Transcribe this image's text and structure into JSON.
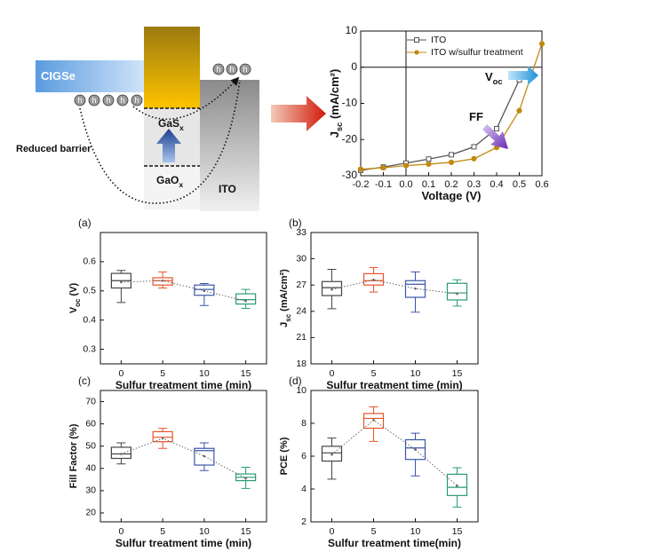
{
  "diagram": {
    "left": [
      "CIGSe"
    ],
    "top": [
      "GaS",
      "x"
    ],
    "barrier": [
      "Reduced barrier"
    ],
    "bottom": [
      "GaO",
      "x"
    ],
    "right": [
      "ITO"
    ],
    "hole": "h"
  },
  "chart_data": [
    {
      "type": "line",
      "xlabel": [
        "Voltage (V)"
      ],
      "ylabel": [
        "J",
        "sc",
        " (mA/cm²)"
      ],
      "x": [
        -0.2,
        -0.1,
        0,
        0.1,
        0.2,
        0.3,
        0.4,
        0.5,
        0.6
      ],
      "series": [
        {
          "name": "ITO",
          "color": "#555555",
          "marker": "square",
          "values": [
            -28.5,
            -27.6,
            -26.5,
            -25.4,
            -24.2,
            -22,
            -17,
            -3.5,
            null
          ]
        },
        {
          "name": "ITO w/sulfur treatment",
          "color": "#c08a10",
          "marker": "circle",
          "values": [
            -28.2,
            -27.8,
            -27.2,
            -26.8,
            -26.3,
            -25.3,
            -22.2,
            -12,
            6.5
          ]
        }
      ],
      "xlim": [
        -0.2,
        0.6
      ],
      "xticks": [
        -0.2,
        -0.1,
        {
          "value": 0,
          "label": "0.0"
        },
        0.1,
        0.2,
        0.3,
        0.4,
        0.5,
        0.6
      ],
      "ylim": [
        -30,
        10
      ],
      "yticks": [
        -30,
        -20,
        -10,
        0,
        10
      ],
      "annotations": [
        [
          "V",
          "oc"
        ],
        [
          "FF"
        ]
      ],
      "legend": "top-right"
    },
    {
      "type": "box",
      "panel": "(a)",
      "xlabel": [
        "Sulfur treatment time (min)"
      ],
      "ylabel": [
        "V",
        "oc",
        " (V)"
      ],
      "categories": [
        "0",
        "5",
        "10",
        "15"
      ],
      "ylim": [
        0.25,
        0.7
      ],
      "yticks": [
        0.3,
        0.4,
        0.5,
        0.6
      ],
      "boxes": [
        {
          "min": 0.46,
          "q1": 0.51,
          "median": 0.535,
          "q3": 0.56,
          "max": 0.57,
          "mean": 0.53,
          "color": "#444444"
        },
        {
          "min": 0.51,
          "q1": 0.52,
          "median": 0.535,
          "q3": 0.545,
          "max": 0.565,
          "mean": 0.535,
          "color": "#e8542a"
        },
        {
          "min": 0.45,
          "q1": 0.485,
          "median": 0.505,
          "q3": 0.52,
          "max": 0.525,
          "mean": 0.5,
          "color": "#3a55a8"
        },
        {
          "min": 0.44,
          "q1": 0.455,
          "median": 0.47,
          "q3": 0.49,
          "max": 0.505,
          "mean": 0.465,
          "color": "#2a9a78"
        }
      ]
    },
    {
      "type": "box",
      "panel": "(b)",
      "xlabel": [
        "Sulfur treatment time (min)"
      ],
      "ylabel": [
        "J",
        "sc",
        " (mA/cm²)"
      ],
      "categories": [
        "0",
        "5",
        "10",
        "15"
      ],
      "ylim": [
        18,
        33
      ],
      "yticks": [
        18,
        21,
        24,
        27,
        30,
        33
      ],
      "boxes": [
        {
          "min": 24.3,
          "q1": 25.8,
          "median": 26.7,
          "q3": 27.4,
          "max": 28.8,
          "mean": 26.5,
          "color": "#444444"
        },
        {
          "min": 26.2,
          "q1": 27,
          "median": 27.5,
          "q3": 28.3,
          "max": 29,
          "mean": 27.6,
          "color": "#e8542a"
        },
        {
          "min": 23.9,
          "q1": 25.6,
          "median": 27.1,
          "q3": 27.5,
          "max": 28.5,
          "mean": 26.6,
          "color": "#3a55a8"
        },
        {
          "min": 24.6,
          "q1": 25.3,
          "median": 26.1,
          "q3": 27.2,
          "max": 27.6,
          "mean": 26,
          "color": "#2a9a78"
        }
      ]
    },
    {
      "type": "box",
      "panel": "(c)",
      "xlabel": [
        "Sulfur treatment time (min)"
      ],
      "ylabel": [
        "Fill Factor (%)"
      ],
      "categories": [
        "0",
        "5",
        "10",
        "15"
      ],
      "ylim": [
        16,
        75
      ],
      "yticks": [
        20,
        30,
        40,
        50,
        60,
        70
      ],
      "boxes": [
        {
          "min": 42,
          "q1": 44.5,
          "median": 46.5,
          "q3": 49.5,
          "max": 51.5,
          "mean": 46.5,
          "color": "#444444"
        },
        {
          "min": 49,
          "q1": 52,
          "median": 54,
          "q3": 56.5,
          "max": 58,
          "mean": 53.5,
          "color": "#e8542a"
        },
        {
          "min": 39,
          "q1": 41.5,
          "median": 48,
          "q3": 49,
          "max": 51.5,
          "mean": 45.5,
          "color": "#3a55a8"
        },
        {
          "min": 31,
          "q1": 34.5,
          "median": 36,
          "q3": 37.5,
          "max": 40.5,
          "mean": 35.5,
          "color": "#2a9a78"
        }
      ]
    },
    {
      "type": "box",
      "panel": "(d)",
      "xlabel": [
        "Sulfur treatment time(min)"
      ],
      "ylabel": [
        "PCE (%)"
      ],
      "categories": [
        "0",
        "5",
        "10",
        "15"
      ],
      "ylim": [
        2,
        10
      ],
      "yticks": [
        2,
        4,
        6,
        8,
        10
      ],
      "boxes": [
        {
          "min": 4.6,
          "q1": 5.7,
          "median": 6.2,
          "q3": 6.6,
          "max": 7.1,
          "mean": 6.1,
          "color": "#444444"
        },
        {
          "min": 6.9,
          "q1": 7.7,
          "median": 8.3,
          "q3": 8.6,
          "max": 9,
          "mean": 8.2,
          "color": "#e8542a"
        },
        {
          "min": 4.8,
          "q1": 5.8,
          "median": 6.5,
          "q3": 7,
          "max": 7.4,
          "mean": 6.4,
          "color": "#3a55a8"
        },
        {
          "min": 2.9,
          "q1": 3.6,
          "median": 4.1,
          "q3": 4.9,
          "max": 5.3,
          "mean": 4.2,
          "color": "#2a9a78"
        }
      ]
    }
  ]
}
